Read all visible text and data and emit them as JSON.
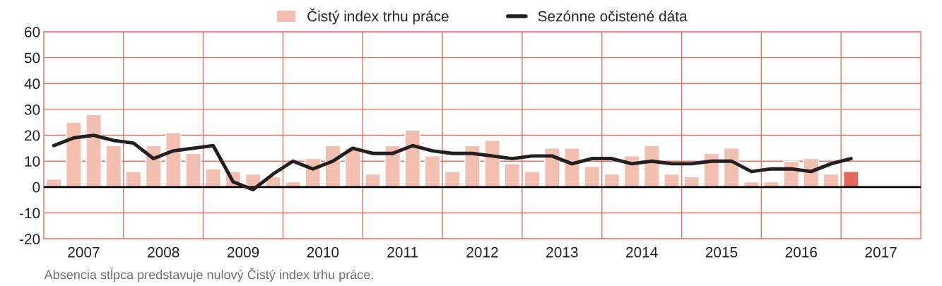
{
  "chart_data": {
    "type": "bar",
    "annotations": [
      "Absencia stĺpca predstavuje nulový Čistý index trhu práce."
    ],
    "x": [
      2007.125,
      2007.375,
      2007.625,
      2007.875,
      2008.125,
      2008.375,
      2008.625,
      2008.875,
      2009.125,
      2009.375,
      2009.625,
      2009.875,
      2010.125,
      2010.375,
      2010.625,
      2010.875,
      2011.125,
      2011.375,
      2011.625,
      2011.875,
      2012.125,
      2012.375,
      2012.625,
      2012.875,
      2013.125,
      2013.375,
      2013.625,
      2013.875,
      2014.125,
      2014.375,
      2014.625,
      2014.875,
      2015.125,
      2015.375,
      2015.625,
      2015.875,
      2016.125,
      2016.375,
      2016.625,
      2016.875,
      2017.125
    ],
    "series": [
      {
        "name": "Čistý index trhu práce",
        "color": "#f2bfb0",
        "colors": [
          "#f2bfb0",
          "#f2bfb0",
          "#f2bfb0",
          "#f2bfb0",
          "#f2bfb0",
          "#f2bfb0",
          "#f2bfb0",
          "#f2bfb0",
          "#f2bfb0",
          "#f2bfb0",
          "#f2bfb0",
          "#f2bfb0",
          "#f2bfb0",
          "#f2bfb0",
          "#f2bfb0",
          "#f2bfb0",
          "#f2bfb0",
          "#f2bfb0",
          "#f2bfb0",
          "#f2bfb0",
          "#f2bfb0",
          "#f2bfb0",
          "#f2bfb0",
          "#f2bfb0",
          "#f2bfb0",
          "#f2bfb0",
          "#f2bfb0",
          "#f2bfb0",
          "#f2bfb0",
          "#f2bfb0",
          "#f2bfb0",
          "#f2bfb0",
          "#f2bfb0",
          "#f2bfb0",
          "#f2bfb0",
          "#f2bfb0",
          "#f2bfb0",
          "#f2bfb0",
          "#f2bfb0",
          "#f2bfb0",
          "#e5685a"
        ],
        "values": [
          3,
          25,
          28,
          16,
          6,
          16,
          21,
          13,
          7,
          6,
          5,
          4,
          2,
          11,
          16,
          15,
          5,
          16,
          22,
          12,
          6,
          16,
          18,
          9,
          6,
          15,
          15,
          8,
          5,
          12,
          16,
          5,
          4,
          13,
          15,
          2,
          2,
          10,
          11,
          5,
          6
        ]
      },
      {
        "name": "Sezónne očistené dáta",
        "type": "line",
        "color": "#231f20",
        "line_style": "solid",
        "marker": "none",
        "values": [
          16,
          19,
          20,
          18,
          17,
          11,
          14,
          15,
          16,
          2,
          -1,
          5,
          10,
          7,
          10,
          15,
          13,
          13,
          16,
          14,
          13,
          13,
          12,
          11,
          12,
          12,
          9,
          11,
          11,
          9,
          10,
          9,
          9,
          10,
          10,
          6,
          7,
          7,
          6,
          9,
          11
        ]
      }
    ],
    "xlim": [
      2007,
      2018
    ],
    "xticks": [
      {
        "value": 2007.5,
        "label": "2007"
      },
      {
        "value": 2008,
        "label": null
      },
      {
        "value": 2008.5,
        "label": "2008"
      },
      {
        "value": 2009,
        "label": null
      },
      {
        "value": 2009.5,
        "label": "2009"
      },
      {
        "value": 2010,
        "label": null
      },
      {
        "value": 2010.5,
        "label": "2010"
      },
      {
        "value": 2011,
        "label": null
      },
      {
        "value": 2011.5,
        "label": "2011"
      },
      {
        "value": 2012,
        "label": null
      },
      {
        "value": 2012.5,
        "label": "2012"
      },
      {
        "value": 2013,
        "label": null
      },
      {
        "value": 2013.5,
        "label": "2013"
      },
      {
        "value": 2014,
        "label": null
      },
      {
        "value": 2014.5,
        "label": "2014"
      },
      {
        "value": 2015,
        "label": null
      },
      {
        "value": 2015.5,
        "label": "2015"
      },
      {
        "value": 2016,
        "label": null
      },
      {
        "value": 2016.5,
        "label": "2016"
      },
      {
        "value": 2017,
        "label": null
      },
      {
        "value": 2017.5,
        "label": "2017"
      }
    ],
    "ylim": [
      -20,
      60
    ],
    "yticks": [
      -20,
      -10,
      0,
      10,
      20,
      30,
      40,
      50,
      60
    ],
    "ref_lines": [
      {
        "axis": "y",
        "value": 0,
        "color": "#000000"
      }
    ],
    "grid": true,
    "legend": "top"
  }
}
